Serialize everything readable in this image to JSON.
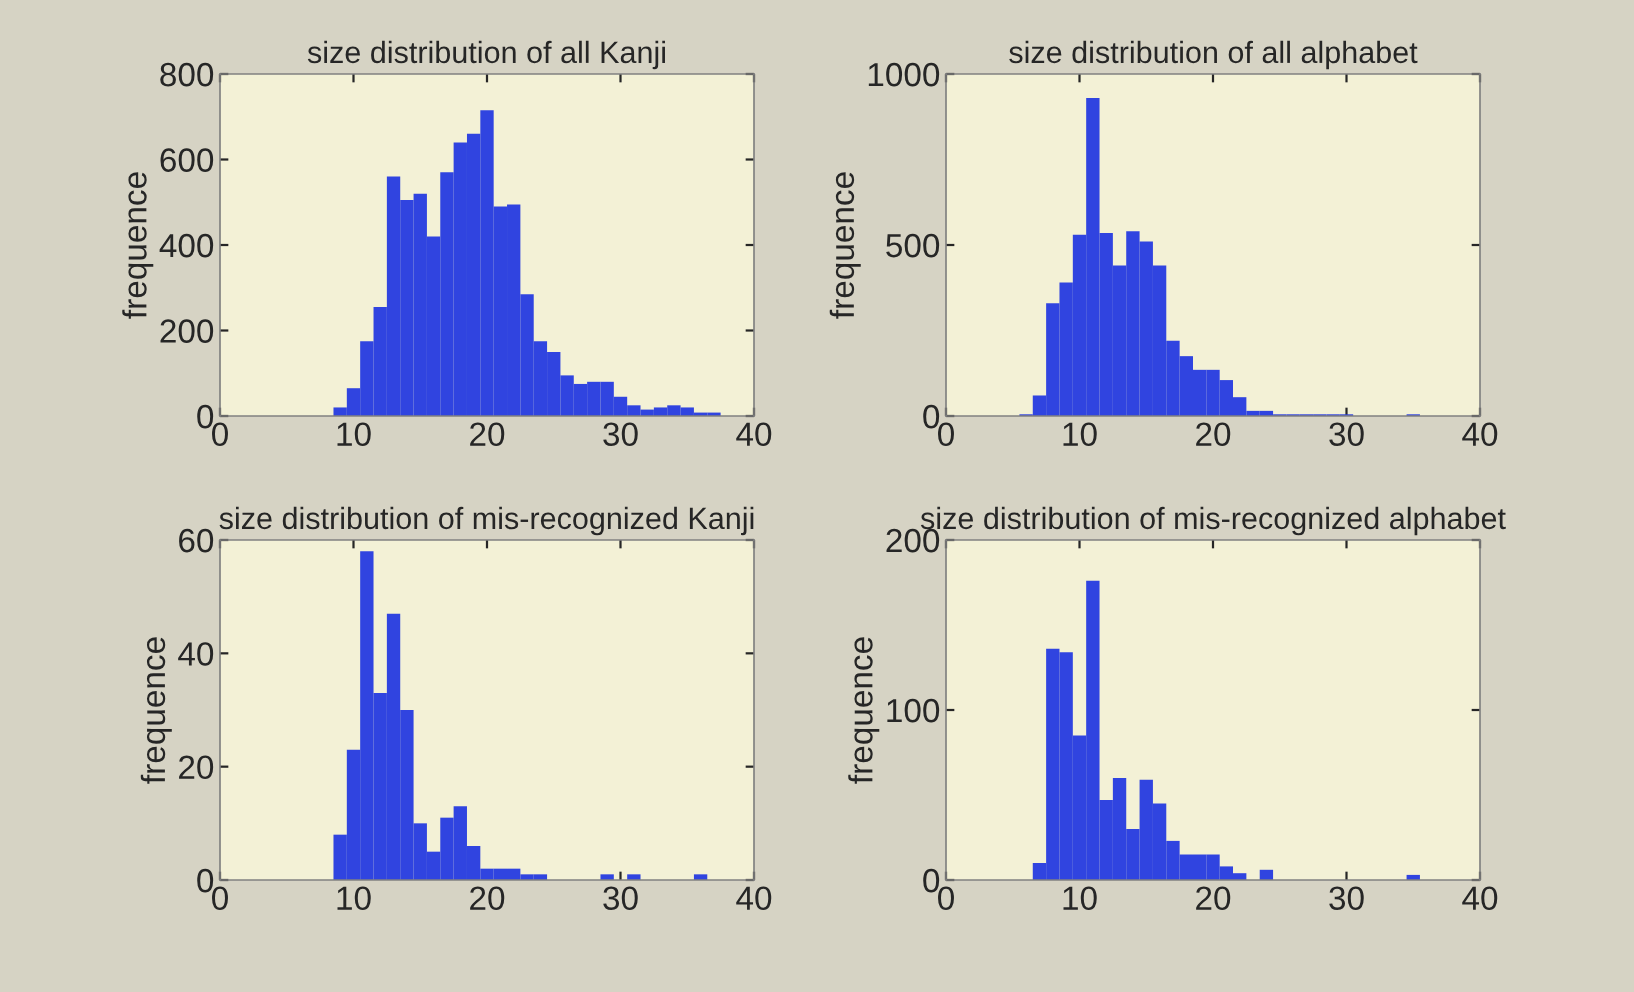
{
  "chart_data": [
    {
      "type": "histogram",
      "title": "size distribution of all Kanji",
      "ylabel": "frequence",
      "color": "#3044e0",
      "bins": [
        8.5,
        9.5,
        10.5,
        11.5,
        12.5,
        13.5,
        14.5,
        15.5,
        16.5,
        17.5,
        18.5,
        19.5,
        20.5,
        21.5,
        22.5,
        23.5,
        24.5,
        25.5,
        26.5,
        27.5,
        28.5,
        29.5,
        30.5,
        31.5,
        32.5,
        33.5,
        34.5,
        35.5,
        36.5,
        37.5
      ],
      "values": [
        20,
        65,
        175,
        255,
        560,
        505,
        520,
        420,
        570,
        640,
        660,
        715,
        490,
        495,
        285,
        175,
        150,
        95,
        75,
        80,
        80,
        45,
        25,
        15,
        20,
        25,
        20,
        8,
        8
      ],
      "xlim": [
        0,
        40
      ],
      "xticks": [
        0,
        10,
        20,
        30,
        40
      ],
      "ylim": [
        0,
        800
      ],
      "yticks": [
        0,
        200,
        400,
        600,
        800
      ],
      "grid": false
    },
    {
      "type": "histogram",
      "title": "size distribution of all alphabet",
      "ylabel": "frequence",
      "color": "#3044e0",
      "bins": [
        5.5,
        6.5,
        7.5,
        8.5,
        9.5,
        10.5,
        11.5,
        12.5,
        13.5,
        14.5,
        15.5,
        16.5,
        17.5,
        18.5,
        19.5,
        20.5,
        21.5,
        22.5,
        23.5,
        24.5,
        25.5,
        26.5,
        27.5,
        28.5,
        29.5,
        30.5,
        31.5,
        32.5,
        33.5,
        34.5,
        35.5
      ],
      "values": [
        5,
        60,
        330,
        390,
        530,
        930,
        535,
        440,
        540,
        510,
        440,
        220,
        175,
        135,
        135,
        105,
        55,
        15,
        15,
        5,
        5,
        5,
        5,
        5,
        5,
        0,
        0,
        0,
        0,
        5
      ],
      "xlim": [
        0,
        40
      ],
      "xticks": [
        0,
        10,
        20,
        30,
        40
      ],
      "ylim": [
        0,
        1000
      ],
      "yticks": [
        0,
        500,
        1000
      ],
      "grid": false
    },
    {
      "type": "histogram",
      "title": "size distribution of mis-recognized Kanji",
      "ylabel": "frequence",
      "color": "#3044e0",
      "bins": [
        8.5,
        9.5,
        10.5,
        11.5,
        12.5,
        13.5,
        14.5,
        15.5,
        16.5,
        17.5,
        18.5,
        19.5,
        20.5,
        21.5,
        22.5,
        23.5,
        24.5,
        25.5,
        26.5,
        27.5,
        28.5,
        29.5,
        30.5,
        31.5,
        32.5,
        33.5,
        34.5,
        35.5,
        36.5
      ],
      "values": [
        8,
        23,
        58,
        33,
        47,
        30,
        10,
        5,
        11,
        13,
        6,
        2,
        2,
        2,
        1,
        1,
        0,
        0,
        0,
        0,
        1,
        0,
        1,
        0,
        0,
        0,
        0,
        1
      ],
      "xlim": [
        0,
        40
      ],
      "xticks": [
        0,
        10,
        20,
        30,
        40
      ],
      "ylim": [
        0,
        60
      ],
      "yticks": [
        0,
        20,
        40,
        60
      ],
      "grid": false
    },
    {
      "type": "histogram",
      "title": "size distribution of mis-recognized alphabet",
      "ylabel": "frequence",
      "color": "#3044e0",
      "bins": [
        6.5,
        7.5,
        8.5,
        9.5,
        10.5,
        11.5,
        12.5,
        13.5,
        14.5,
        15.5,
        16.5,
        17.5,
        18.5,
        19.5,
        20.5,
        21.5,
        22.5,
        23.5,
        24.5,
        25.5,
        26.5,
        27.5,
        28.5,
        29.5,
        30.5,
        31.5,
        32.5,
        33.5,
        34.5,
        35.5
      ],
      "values": [
        10,
        136,
        134,
        85,
        176,
        47,
        60,
        30,
        59,
        45,
        23,
        15,
        15,
        15,
        8,
        4,
        0,
        6,
        0,
        0,
        0,
        0,
        0,
        0,
        0,
        0,
        0,
        0,
        3
      ],
      "xlim": [
        0,
        40
      ],
      "xticks": [
        0,
        10,
        20,
        30,
        40
      ],
      "ylim": [
        0,
        200
      ],
      "yticks": [
        0,
        100,
        200
      ],
      "grid": false
    }
  ]
}
